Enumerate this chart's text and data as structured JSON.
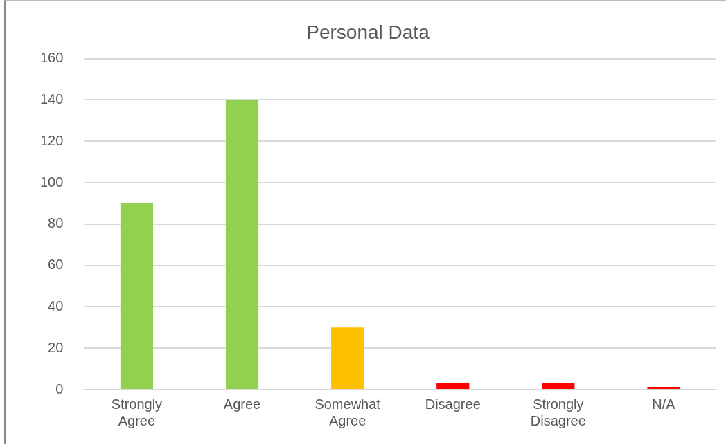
{
  "chart_data": {
    "type": "bar",
    "title": "Personal Data",
    "categories": [
      "Strongly Agree",
      "Agree",
      "Somewhat Agree",
      "Disagree",
      "Strongly Disagree",
      "N/A"
    ],
    "values": [
      90,
      140,
      30,
      3,
      3,
      1
    ],
    "colors": [
      "#92d050",
      "#92d050",
      "#ffc000",
      "#ff0000",
      "#ff0000",
      "#ff0000"
    ],
    "ylim": [
      0,
      160
    ],
    "yticks": [
      0,
      20,
      40,
      60,
      80,
      100,
      120,
      140,
      160
    ],
    "grid": "y",
    "legend": false
  }
}
